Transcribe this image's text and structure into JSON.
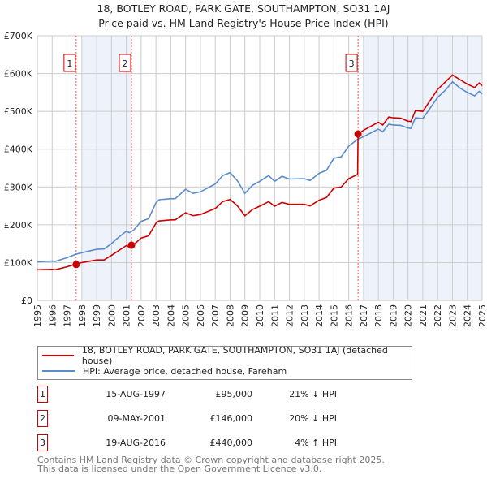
{
  "chart_data": {
    "type": "line",
    "title": "18, BOTLEY ROAD, PARK GATE, SOUTHAMPTON, SO31 1AJ",
    "subtitle": "Price paid vs. HM Land Registry's House Price Index (HPI)",
    "xlim": [
      1995,
      2025
    ],
    "ylim": [
      0,
      700000
    ],
    "yticks": [
      {
        "v": 0,
        "label": "£0"
      },
      {
        "v": 100000,
        "label": "£100K"
      },
      {
        "v": 200000,
        "label": "£200K"
      },
      {
        "v": 300000,
        "label": "£300K"
      },
      {
        "v": 400000,
        "label": "£400K"
      },
      {
        "v": 500000,
        "label": "£500K"
      },
      {
        "v": 600000,
        "label": "£600K"
      },
      {
        "v": 700000,
        "label": "£700K"
      }
    ],
    "xticks": [
      "1995",
      "1996",
      "1997",
      "1998",
      "1999",
      "2000",
      "2001",
      "2002",
      "2003",
      "2004",
      "2005",
      "2006",
      "2007",
      "2008",
      "2009",
      "2010",
      "2011",
      "2012",
      "2013",
      "2014",
      "2015",
      "2016",
      "2017",
      "2018",
      "2019",
      "2020",
      "2021",
      "2022",
      "2023",
      "2024",
      "2025"
    ],
    "grid": true,
    "shaded_ranges": [
      [
        1998.0,
        2001.35
      ],
      [
        2017.0,
        2025
      ]
    ],
    "series": [
      {
        "name": "HPI: Average price, detached house, Fareham",
        "color": "#5b8ccc",
        "x": [
          1995,
          1996,
          1996.2,
          1997,
          1997.6,
          1998,
          1999,
          1999.5,
          2000,
          2000.3,
          2001,
          2001.2,
          2001.5,
          2002,
          2002.5,
          2003,
          2003.2,
          2004,
          2004.3,
          2005,
          2005.5,
          2006,
          2007,
          2007.5,
          2008,
          2008.5,
          2009,
          2009.5,
          2010,
          2010.6,
          2011,
          2011.5,
          2012,
          2013,
          2013.4,
          2014,
          2014.5,
          2015,
          2015.5,
          2016,
          2016.6,
          2017,
          2018,
          2018.3,
          2018.7,
          2019,
          2019.5,
          2020,
          2020.2,
          2020.5,
          2021,
          2021.5,
          2022,
          2022.5,
          2023,
          2023.5,
          2024,
          2024.5,
          2024.8,
          2025
        ],
        "y": [
          102,
          104,
          103,
          113,
          122,
          126,
          135,
          136,
          150,
          161,
          183,
          179,
          186,
          209,
          216,
          258,
          266,
          269,
          269,
          294,
          283,
          287,
          308,
          330,
          338,
          316,
          283,
          304,
          315,
          330,
          315,
          328,
          321,
          322,
          317,
          336,
          344,
          376,
          380,
          408,
          426,
          433,
          453,
          446,
          466,
          464,
          463,
          456,
          455,
          483,
          481,
          509,
          537,
          555,
          578,
          562,
          550,
          541,
          553,
          546
        ],
        "unit": "£K"
      },
      {
        "name": "18, BOTLEY ROAD, PARK GATE, SOUTHAMPTON, SO31 1AJ (detached house)",
        "color": "#cc0000",
        "x": [
          1995,
          1996,
          1996.2,
          1997,
          1997.6,
          1998,
          1999,
          1999.5,
          2000,
          2000.3,
          2001,
          2001.2,
          2001.5,
          2002,
          2002.5,
          2003,
          2003.2,
          2004,
          2004.3,
          2005,
          2005.5,
          2006,
          2007,
          2007.5,
          2008,
          2008.5,
          2009,
          2009.5,
          2010,
          2010.6,
          2011,
          2011.5,
          2012,
          2013,
          2013.4,
          2014,
          2014.5,
          2015,
          2015.5,
          2016,
          2016.6,
          2016.63,
          2017,
          2018,
          2018.3,
          2018.7,
          2019,
          2019.5,
          2020,
          2020.2,
          2020.5,
          2021,
          2021.5,
          2022,
          2022.5,
          2023,
          2023.5,
          2024,
          2024.5,
          2024.8,
          2025
        ],
        "y": [
          81,
          82,
          81,
          89,
          96,
          100,
          107,
          107,
          119,
          127,
          145,
          141,
          147,
          165,
          171,
          204,
          210,
          213,
          213,
          232,
          224,
          227,
          243,
          261,
          267,
          250,
          224,
          240,
          249,
          261,
          249,
          259,
          254,
          254,
          250,
          265,
          272,
          297,
          300,
          322,
          333,
          440,
          450,
          471,
          464,
          485,
          483,
          482,
          474,
          473,
          502,
          500,
          529,
          558,
          577,
          596,
          584,
          572,
          563,
          575,
          568
        ],
        "unit": "£K"
      }
    ],
    "sales": [
      {
        "id": "1",
        "x": 1997.62,
        "price": 95000,
        "date": "15-AUG-1997",
        "price_label": "£95,000",
        "hpi_diff": "21% ↓ HPI"
      },
      {
        "id": "2",
        "x": 2001.35,
        "price": 146000,
        "date": "09-MAY-2001",
        "price_label": "£146,000",
        "hpi_diff": "20% ↓ HPI"
      },
      {
        "id": "3",
        "x": 2016.63,
        "price": 440000,
        "date": "19-AUG-2016",
        "price_label": "£440,000",
        "hpi_diff": "4% ↑ HPI"
      }
    ],
    "legend": {
      "placement": "below",
      "entries": [
        "18, BOTLEY ROAD, PARK GATE, SOUTHAMPTON, SO31 1AJ (detached house)",
        "HPI: Average price, detached house, Fareham"
      ]
    }
  },
  "footer": [
    "Contains HM Land Registry data © Crown copyright and database right 2025.",
    "This data is licensed under the Open Government Licence v3.0."
  ],
  "colors": {
    "red": "#cc0000",
    "blue": "#5b8ccc",
    "shade": "#eef3fb"
  }
}
